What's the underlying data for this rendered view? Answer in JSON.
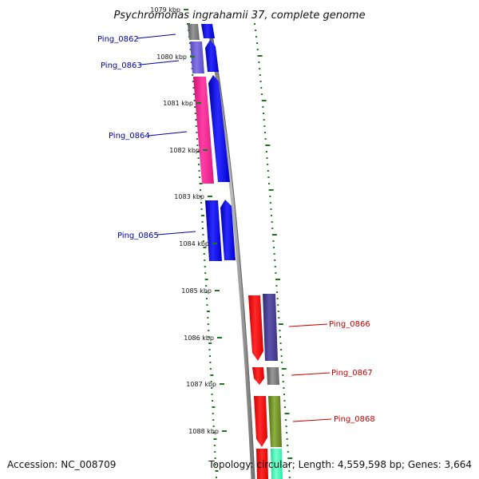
{
  "title": "Psychromonas ingrahamii 37, complete genome",
  "accession": "Accession: NC_008709",
  "summary": "Topology: circular; Length: 4,559,598 bp; Genes: 3,664",
  "kbp_labels": [
    "1079 kbp",
    "1080 kbp",
    "1081 kbp",
    "1082 kbp",
    "1083 kbp",
    "1084 kbp",
    "1085 kbp",
    "1086 kbp",
    "1087 kbp",
    "1088 kbp"
  ],
  "genes_left": [
    {
      "name": "Ping_0862",
      "color": "#0000aa"
    },
    {
      "name": "Ping_0863",
      "color": "#0000aa"
    },
    {
      "name": "Ping_0864",
      "color": "#0000aa"
    },
    {
      "name": "Ping_0865",
      "color": "#0000aa"
    }
  ],
  "genes_right": [
    {
      "name": "Ping_0866",
      "color": "#cc0000"
    },
    {
      "name": "Ping_0867",
      "color": "#cc0000"
    },
    {
      "name": "Ping_0868",
      "color": "#cc0000"
    }
  ],
  "colors": {
    "backbone": "#888888",
    "gc_dash": "#1a7a1a",
    "forward_gene": "#0000ee",
    "reverse_gene": "#ee0000",
    "cog_magenta": "#ee1e8c",
    "cog_purple": "#6a5acd",
    "cog_gray": "#777777",
    "cog_olive": "#6b8e23",
    "cog_aqua": "#33ffbb",
    "cog_darkslate": "#483d8b"
  }
}
